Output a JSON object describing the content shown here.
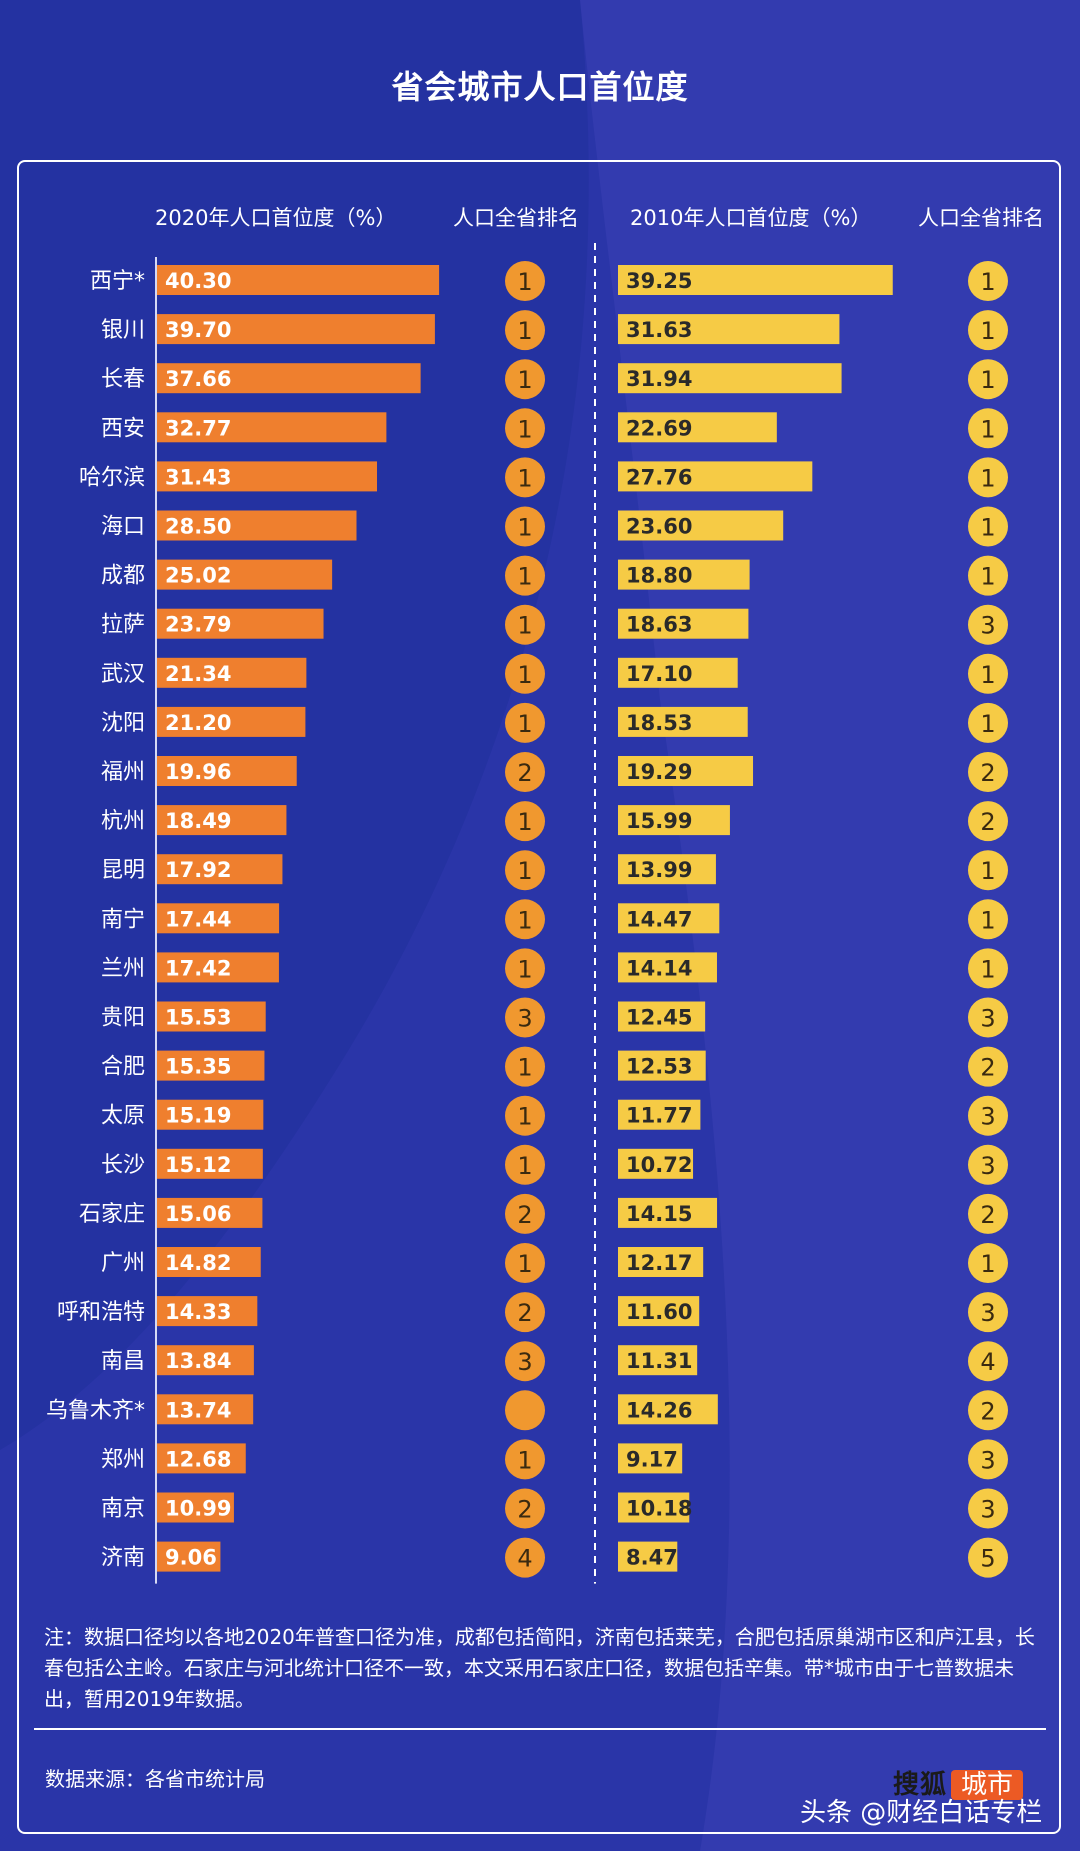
{
  "title": "省会城市人口首位度",
  "headers": {
    "primacy_2020": "2020年人口首位度（%）",
    "rank_2020": "人口全省排名",
    "primacy_2010": "2010年人口首位度（%）",
    "rank_2010": "人口全省排名"
  },
  "colors": {
    "background": "#2a35a8",
    "bar_2020": "#ef7f2e",
    "bar_2010": "#f6cb45",
    "circle_2020": "#f0982f",
    "circle_2010": "#f6cb45"
  },
  "chart_data": {
    "type": "bar",
    "orientation": "horizontal",
    "categories": [
      "西宁*",
      "银川",
      "长春",
      "西安",
      "哈尔滨",
      "海口",
      "成都",
      "拉萨",
      "武汉",
      "沈阳",
      "福州",
      "杭州",
      "昆明",
      "南宁",
      "兰州",
      "贵阳",
      "合肥",
      "太原",
      "长沙",
      "石家庄",
      "广州",
      "呼和浩特",
      "南昌",
      "乌鲁木齐*",
      "郑州",
      "南京",
      "济南"
    ],
    "series": [
      {
        "name": "2020年人口首位度（%）",
        "values": [
          40.3,
          39.7,
          37.66,
          32.77,
          31.43,
          28.5,
          25.02,
          23.79,
          21.34,
          21.2,
          19.96,
          18.49,
          17.92,
          17.44,
          17.42,
          15.53,
          15.35,
          15.19,
          15.12,
          15.06,
          14.82,
          14.33,
          13.84,
          13.74,
          12.68,
          10.99,
          9.06
        ],
        "labels": [
          "40.30",
          "39.70",
          "37.66",
          "32.77",
          "31.43",
          "28.50",
          "25.02",
          "23.79",
          "21.34",
          "21.20",
          "19.96",
          "18.49",
          "17.92",
          "17.44",
          "17.42",
          "15.53",
          "15.35",
          "15.19",
          "15.12",
          "15.06",
          "14.82",
          "14.33",
          "13.84",
          "13.74",
          "12.68",
          "10.99",
          "9.06"
        ],
        "ranks": [
          "1",
          "1",
          "1",
          "1",
          "1",
          "1",
          "1",
          "1",
          "1",
          "1",
          "2",
          "1",
          "1",
          "1",
          "1",
          "3",
          "1",
          "1",
          "1",
          "2",
          "1",
          "2",
          "3",
          "",
          "1",
          "2",
          "4"
        ]
      },
      {
        "name": "2010年人口首位度（%）",
        "values": [
          39.25,
          31.63,
          31.94,
          22.69,
          27.76,
          23.6,
          18.8,
          18.63,
          17.1,
          18.53,
          19.29,
          15.99,
          13.99,
          14.47,
          14.14,
          12.45,
          12.53,
          11.77,
          10.72,
          14.15,
          12.17,
          11.6,
          11.31,
          14.26,
          9.17,
          10.18,
          8.47
        ],
        "labels": [
          "39.25",
          "31.63",
          "31.94",
          "22.69",
          "27.76",
          "23.60",
          "18.80",
          "18.63",
          "17.10",
          "18.53",
          "19.29",
          "15.99",
          "13.99",
          "14.47",
          "14.14",
          "12.45",
          "12.53",
          "11.77",
          "10.72",
          "14.15",
          "12.17",
          "11.60",
          "11.31",
          "14.26",
          "9.17",
          "10.18",
          "8.47"
        ],
        "ranks": [
          "1",
          "1",
          "1",
          "1",
          "1",
          "1",
          "1",
          "3",
          "1",
          "1",
          "2",
          "2",
          "1",
          "1",
          "1",
          "3",
          "2",
          "3",
          "3",
          "2",
          "1",
          "3",
          "4",
          "2",
          "3",
          "3",
          "5"
        ]
      }
    ]
  },
  "note": "注：数据口径均以各地2020年普查口径为准，成都包括简阳，济南包括莱芜，合肥包括原巢湖市区和庐江县，长春包括公主岭。石家庄与河北统计口径不一致，本文采用石家庄口径，数据包括辛集。带*城市由于七普数据未出，暂用2019年数据。",
  "source": "数据来源：各省市统计局",
  "logo": {
    "part1": "搜狐",
    "part2": "城市"
  },
  "watermark": "头条 @财经白话专栏"
}
